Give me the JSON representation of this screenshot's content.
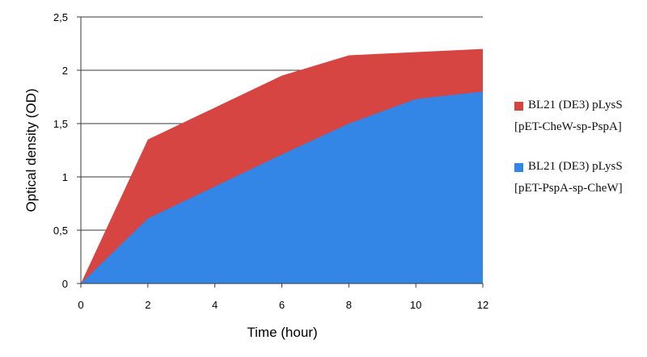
{
  "chart_data": {
    "type": "area",
    "stacked": true,
    "xlabel": "Time (hour)",
    "ylabel": "Optical density (OD)",
    "x": [
      0,
      2,
      4,
      6,
      8,
      10,
      12
    ],
    "x_tick_labels": [
      "0",
      "2",
      "4",
      "6",
      "8",
      "10",
      "12"
    ],
    "y_tick_labels": [
      "0",
      "0,5",
      "1",
      "1,5",
      "2",
      "2,5"
    ],
    "y_ticks": [
      0,
      0.5,
      1,
      1.5,
      2,
      2.5
    ],
    "xlim": [
      0,
      12
    ],
    "ylim": [
      0,
      2.5
    ],
    "grid": "horizontal",
    "legend_position": "right",
    "series": [
      {
        "name_line1": "BL21 (DE3) pLysS",
        "name_line2": "[pET-CheW-sp-PspA]",
        "color": "#d64541",
        "top_values": [
          0,
          1.35,
          1.65,
          1.95,
          2.14,
          2.17,
          2.2
        ]
      },
      {
        "name_line1": "BL21 (DE3) pLysS",
        "name_line2": "[pET-PspA-sp-CheW]",
        "color": "#3385e6",
        "top_values": [
          0,
          0.61,
          0.91,
          1.21,
          1.5,
          1.73,
          1.8
        ]
      }
    ]
  }
}
